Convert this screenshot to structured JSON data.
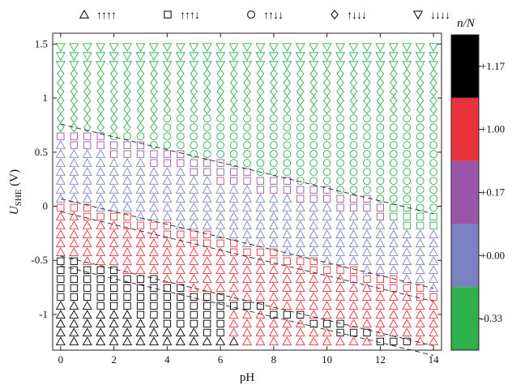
{
  "chart_data": {
    "type": "scatter",
    "title": "",
    "xlabel": "pH",
    "ylabel_main": "U",
    "ylabel_sub": "SHE",
    "ylabel_unit": " (V)",
    "xlim": [
      -0.3,
      14.3
    ],
    "ylim": [
      -1.33,
      1.6
    ],
    "x_ticks": [
      0,
      2,
      4,
      6,
      8,
      10,
      12,
      14
    ],
    "x_tick_labels": [
      "0",
      "2",
      "4",
      "6",
      "8",
      "10",
      "12",
      "14"
    ],
    "y_ticks": [
      1.5,
      1.0,
      0.5,
      0.0,
      -0.5,
      -1.0
    ],
    "y_tick_labels": [
      "1.5",
      "1",
      "0.5",
      "0",
      "-0.5",
      "-1"
    ],
    "grid": {
      "ph_start": 0,
      "ph_step": 0.5,
      "ph_count": 29,
      "u_start": -1.25,
      "u_step": 0.0825,
      "u_count": 34
    },
    "legend": {
      "position": "top",
      "entries": [
        {
          "marker": "triangle-up",
          "label": "↑↑↑↑"
        },
        {
          "marker": "square",
          "label": "↑↑↑↓"
        },
        {
          "marker": "circle",
          "label": "↑↑↓↓"
        },
        {
          "marker": "diamond",
          "label": "↑↓↓↓"
        },
        {
          "marker": "triangle-down",
          "label": "↓↓↓↓"
        }
      ]
    },
    "colorbar": {
      "title": "n/N",
      "segments": [
        {
          "label": "+1.17",
          "color": "#000000"
        },
        {
          "label": "+1.00",
          "color": "#e8323c"
        },
        {
          "label": "+0.17",
          "color": "#9b55a8"
        },
        {
          "label": "+0.00",
          "color": "#7b82c2"
        },
        {
          "label": "-0.33",
          "color": "#2fb04d"
        }
      ]
    },
    "regions": {
      "description_free_data": true,
      "boundaries": [
        {
          "slope": -0.0592,
          "intercept": 0.76,
          "ph_max": 14
        },
        {
          "slope": -0.0592,
          "intercept": 0.07,
          "ph_max": 14
        },
        {
          "slope": -0.0592,
          "intercept": -0.05,
          "ph_max": 14
        },
        {
          "slope": -0.0592,
          "intercept": -0.46,
          "ph_max": 14
        },
        {
          "slope": -0.0592,
          "intercept": -0.55,
          "ph_max": 14
        }
      ]
    }
  }
}
